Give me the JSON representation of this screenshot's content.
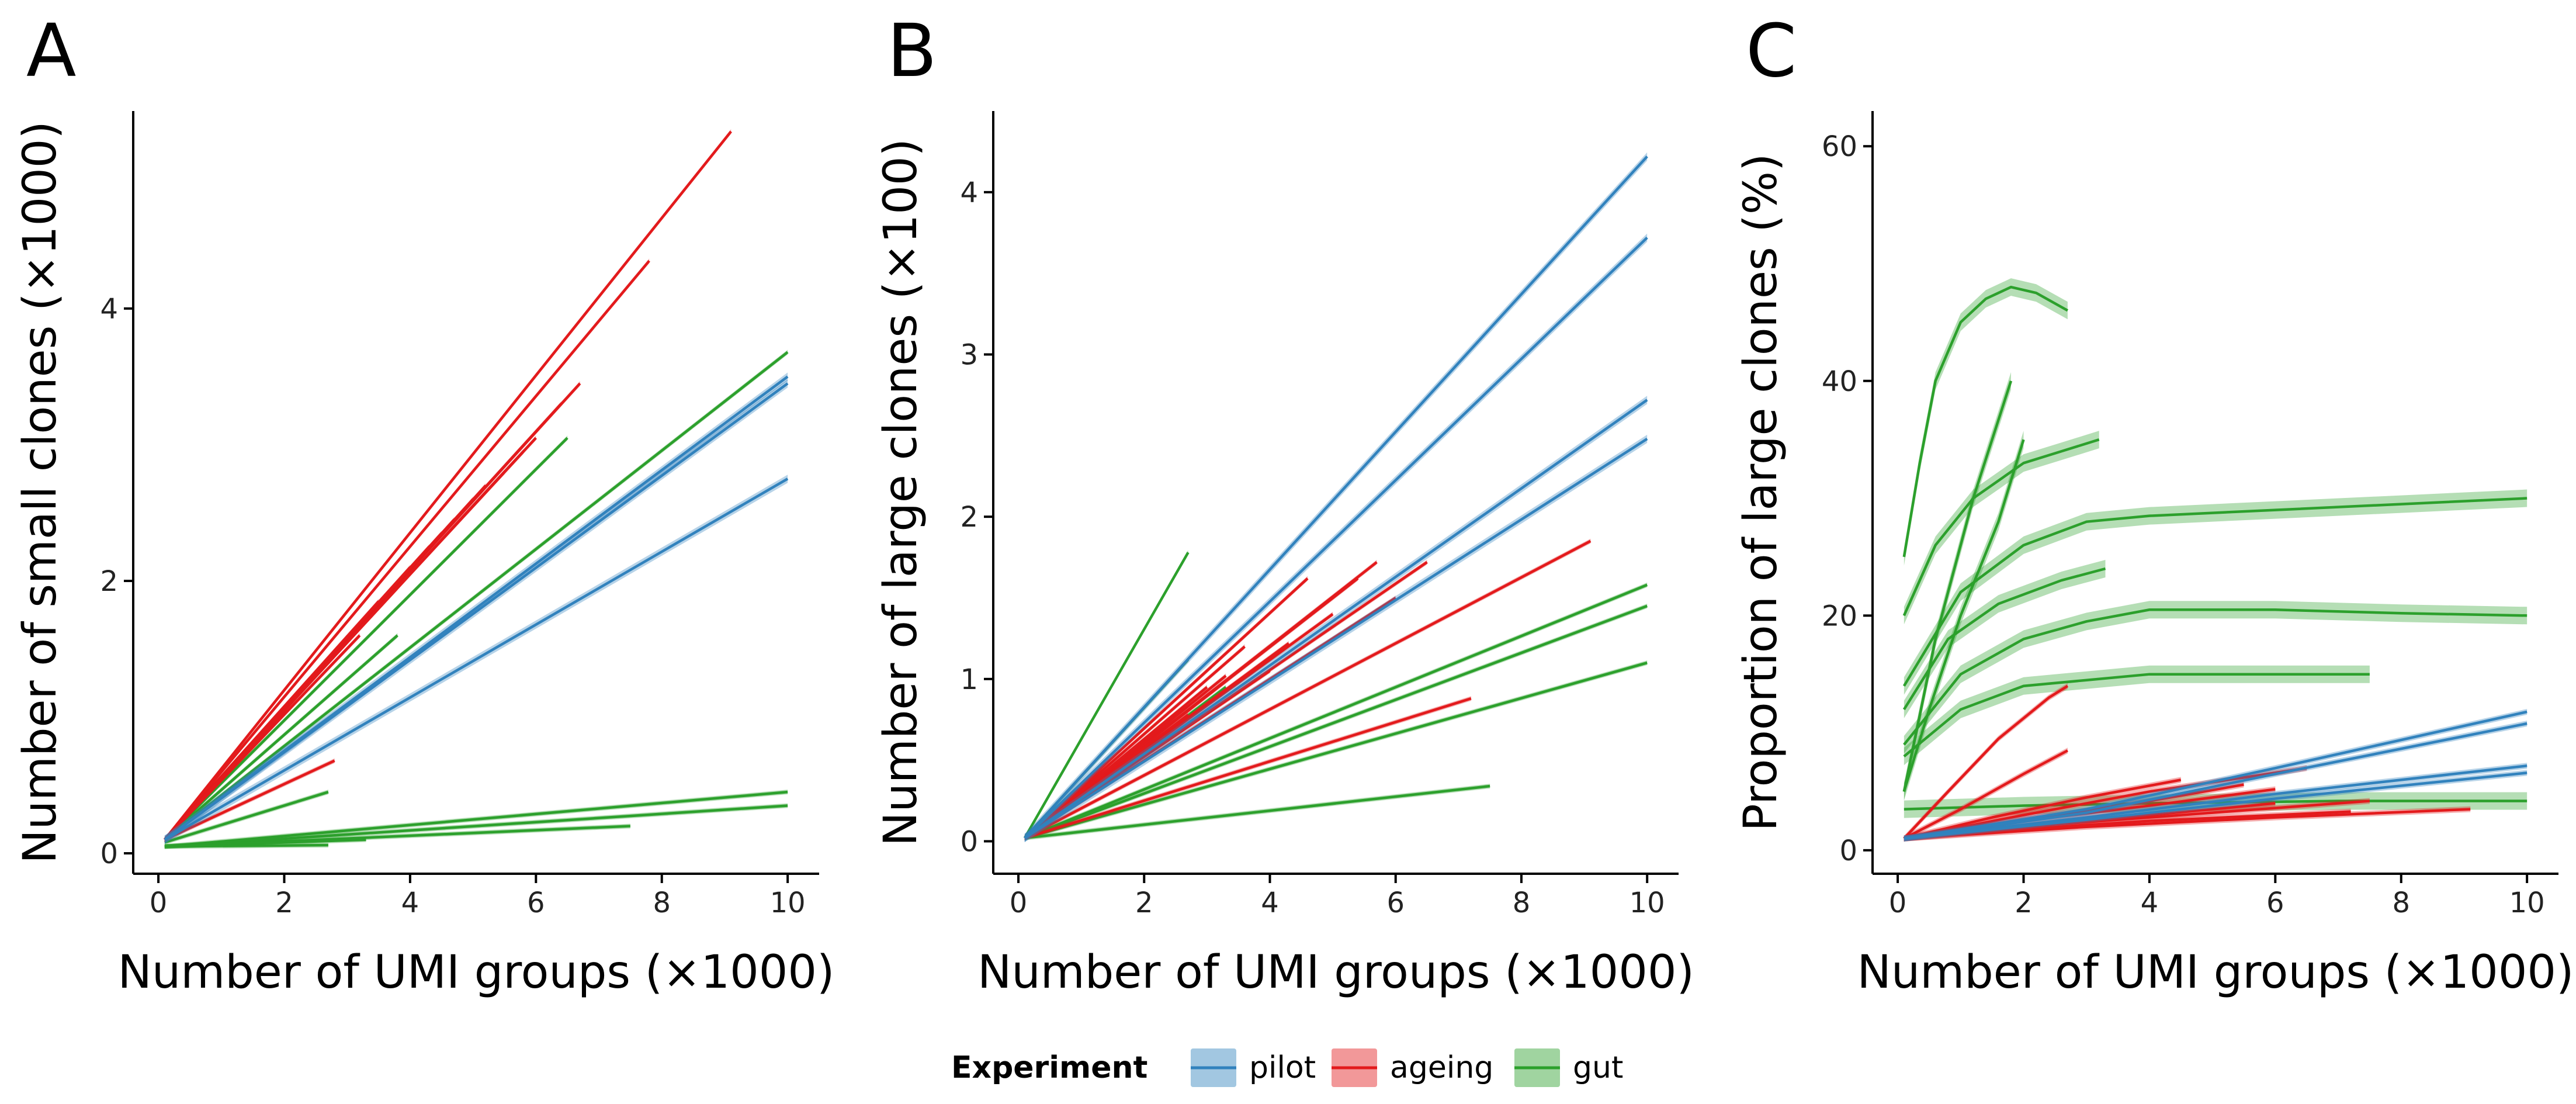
{
  "legend": {
    "title": "Experiment",
    "items": [
      {
        "label": "pilot",
        "color": "#3182bd"
      },
      {
        "label": "ageing",
        "color": "#e31a1c"
      },
      {
        "label": "gut",
        "color": "#2ca02c"
      }
    ],
    "placement": "bottom-center"
  },
  "chart_data": [
    {
      "panel": "A",
      "type": "line",
      "xlabel": "Number of UMI groups (×1000)",
      "ylabel": "Number of small clones (×1000)",
      "xlim": [
        -0.4,
        10.5
      ],
      "ylim": [
        -0.15,
        5.45
      ],
      "xticks": [
        0,
        2,
        4,
        6,
        8,
        10
      ],
      "yticks": [
        0,
        2,
        4
      ],
      "grid": false,
      "series": [
        {
          "group": "ageing",
          "x": [
            0.1,
            9.1
          ],
          "y": [
            0.1,
            5.3
          ]
        },
        {
          "group": "ageing",
          "x": [
            0.1,
            7.8
          ],
          "y": [
            0.1,
            4.35
          ]
        },
        {
          "group": "ageing",
          "x": [
            0.1,
            6.7
          ],
          "y": [
            0.1,
            3.45
          ]
        },
        {
          "group": "ageing",
          "x": [
            0.1,
            6.4
          ],
          "y": [
            0.1,
            3.3
          ]
        },
        {
          "group": "ageing",
          "x": [
            0.1,
            6.0
          ],
          "y": [
            0.1,
            3.05
          ]
        },
        {
          "group": "ageing",
          "x": [
            0.1,
            5.8
          ],
          "y": [
            0.1,
            2.95
          ]
        },
        {
          "group": "ageing",
          "x": [
            0.1,
            5.5
          ],
          "y": [
            0.1,
            2.8
          ]
        },
        {
          "group": "ageing",
          "x": [
            0.1,
            5.2
          ],
          "y": [
            0.1,
            2.7
          ]
        },
        {
          "group": "ageing",
          "x": [
            0.1,
            5.0
          ],
          "y": [
            0.1,
            2.6
          ]
        },
        {
          "group": "ageing",
          "x": [
            0.1,
            4.7
          ],
          "y": [
            0.1,
            2.45
          ]
        },
        {
          "group": "ageing",
          "x": [
            0.1,
            4.5
          ],
          "y": [
            0.1,
            2.35
          ]
        },
        {
          "group": "ageing",
          "x": [
            0.1,
            4.3
          ],
          "y": [
            0.1,
            2.25
          ]
        },
        {
          "group": "ageing",
          "x": [
            0.1,
            4.0
          ],
          "y": [
            0.1,
            2.1
          ]
        },
        {
          "group": "ageing",
          "x": [
            0.1,
            3.8
          ],
          "y": [
            0.1,
            1.95
          ]
        },
        {
          "group": "ageing",
          "x": [
            0.1,
            3.5
          ],
          "y": [
            0.1,
            1.85
          ]
        },
        {
          "group": "ageing",
          "x": [
            0.1,
            3.2
          ],
          "y": [
            0.1,
            1.6
          ]
        },
        {
          "group": "ageing",
          "x": [
            0.1,
            2.8
          ],
          "y": [
            0.1,
            1.45
          ]
        },
        {
          "group": "ageing",
          "x": [
            0.1,
            2.5
          ],
          "y": [
            0.1,
            1.3
          ]
        },
        {
          "group": "ageing",
          "x": [
            0.1,
            2.2
          ],
          "y": [
            0.1,
            1.15
          ]
        },
        {
          "group": "ageing",
          "x": [
            0.1,
            2.0
          ],
          "y": [
            0.1,
            1.05
          ]
        },
        {
          "group": "ageing",
          "x": [
            0.1,
            2.8
          ],
          "y": [
            0.1,
            0.68
          ]
        },
        {
          "group": "pilot",
          "x": [
            0.1,
            10
          ],
          "y": [
            0.1,
            3.45
          ]
        },
        {
          "group": "pilot",
          "x": [
            0.1,
            10
          ],
          "y": [
            0.1,
            3.5
          ]
        },
        {
          "group": "pilot",
          "x": [
            0.1,
            10
          ],
          "y": [
            0.1,
            2.75
          ]
        },
        {
          "group": "gut",
          "x": [
            0.1,
            10
          ],
          "y": [
            0.1,
            3.68
          ]
        },
        {
          "group": "gut",
          "x": [
            0.1,
            6.5
          ],
          "y": [
            0.1,
            3.05
          ]
        },
        {
          "group": "gut",
          "x": [
            0.1,
            3.8
          ],
          "y": [
            0.1,
            1.6
          ]
        },
        {
          "group": "gut",
          "x": [
            0.1,
            10
          ],
          "y": [
            0.05,
            0.45
          ]
        },
        {
          "group": "gut",
          "x": [
            0.1,
            10
          ],
          "y": [
            0.05,
            0.35
          ]
        },
        {
          "group": "gut",
          "x": [
            0.1,
            7.5
          ],
          "y": [
            0.05,
            0.2
          ]
        },
        {
          "group": "gut",
          "x": [
            0.1,
            3.3
          ],
          "y": [
            0.05,
            0.1
          ]
        },
        {
          "group": "gut",
          "x": [
            0.1,
            2.7
          ],
          "y": [
            0.05,
            0.06
          ]
        },
        {
          "group": "gut",
          "x": [
            0.1,
            2.7
          ],
          "y": [
            0.08,
            0.45
          ]
        }
      ]
    },
    {
      "panel": "B",
      "type": "line",
      "xlabel": "Number of UMI groups (×1000)",
      "ylabel": "Number of large clones (×100)",
      "xlim": [
        -0.4,
        10.5
      ],
      "ylim": [
        -0.2,
        4.5
      ],
      "xticks": [
        0,
        2,
        4,
        6,
        8,
        10
      ],
      "yticks": [
        0,
        1,
        2,
        3,
        4
      ],
      "grid": false,
      "series": [
        {
          "group": "pilot",
          "x": [
            0.1,
            10
          ],
          "y": [
            0.02,
            4.22
          ]
        },
        {
          "group": "pilot",
          "x": [
            0.1,
            10
          ],
          "y": [
            0.02,
            3.72
          ]
        },
        {
          "group": "pilot",
          "x": [
            0.1,
            10
          ],
          "y": [
            0.02,
            2.72
          ]
        },
        {
          "group": "pilot",
          "x": [
            0.1,
            10
          ],
          "y": [
            0.02,
            2.48
          ]
        },
        {
          "group": "ageing",
          "x": [
            0.1,
            9.1
          ],
          "y": [
            0.02,
            1.85
          ]
        },
        {
          "group": "ageing",
          "x": [
            0.1,
            7.2
          ],
          "y": [
            0.02,
            0.88
          ]
        },
        {
          "group": "ageing",
          "x": [
            0.1,
            6.5
          ],
          "y": [
            0.02,
            1.72
          ]
        },
        {
          "group": "ageing",
          "x": [
            0.1,
            6.0
          ],
          "y": [
            0.02,
            1.5
          ]
        },
        {
          "group": "ageing",
          "x": [
            0.1,
            5.7
          ],
          "y": [
            0.02,
            1.72
          ]
        },
        {
          "group": "ageing",
          "x": [
            0.1,
            5.4
          ],
          "y": [
            0.02,
            1.62
          ]
        },
        {
          "group": "ageing",
          "x": [
            0.1,
            5.0
          ],
          "y": [
            0.02,
            1.4
          ]
        },
        {
          "group": "ageing",
          "x": [
            0.1,
            4.6
          ],
          "y": [
            0.02,
            1.62
          ]
        },
        {
          "group": "ageing",
          "x": [
            0.1,
            4.3
          ],
          "y": [
            0.02,
            1.22
          ]
        },
        {
          "group": "ageing",
          "x": [
            0.1,
            4.0
          ],
          "y": [
            0.02,
            1.05
          ]
        },
        {
          "group": "ageing",
          "x": [
            0.1,
            3.6
          ],
          "y": [
            0.02,
            1.2
          ]
        },
        {
          "group": "ageing",
          "x": [
            0.1,
            3.3
          ],
          "y": [
            0.02,
            1.02
          ]
        },
        {
          "group": "ageing",
          "x": [
            0.1,
            3.0
          ],
          "y": [
            0.02,
            0.95
          ]
        },
        {
          "group": "ageing",
          "x": [
            0.1,
            2.7
          ],
          "y": [
            0.02,
            0.78
          ]
        },
        {
          "group": "gut",
          "x": [
            0.1,
            2.7
          ],
          "y": [
            0.02,
            1.78
          ]
        },
        {
          "group": "gut",
          "x": [
            0.1,
            2.7
          ],
          "y": [
            0.02,
            1.12
          ]
        },
        {
          "group": "gut",
          "x": [
            0.1,
            10
          ],
          "y": [
            0.02,
            1.58
          ]
        },
        {
          "group": "gut",
          "x": [
            0.1,
            10
          ],
          "y": [
            0.02,
            1.45
          ]
        },
        {
          "group": "gut",
          "x": [
            0.1,
            10
          ],
          "y": [
            0.02,
            1.1
          ]
        },
        {
          "group": "gut",
          "x": [
            0.1,
            7.5
          ],
          "y": [
            0.02,
            0.34
          ]
        },
        {
          "group": "gut",
          "x": [
            0.1,
            3.3
          ],
          "y": [
            0.02,
            0.95
          ]
        }
      ]
    },
    {
      "panel": "C",
      "type": "line",
      "xlabel": "Number of UMI groups (×1000)",
      "ylabel": "Proportion of large clones (%)",
      "xlim": [
        -0.4,
        10.5
      ],
      "ylim": [
        -2,
        63
      ],
      "xticks": [
        0,
        2,
        4,
        6,
        8,
        10
      ],
      "yticks": [
        0,
        20,
        40,
        60
      ],
      "grid": false,
      "series": [
        {
          "group": "gut",
          "x": [
            0.1,
            0.35,
            0.6,
            1.0,
            1.4,
            1.8,
            2.2,
            2.7
          ],
          "y": [
            25,
            33,
            40,
            45,
            47,
            48,
            47.5,
            46
          ]
        },
        {
          "group": "gut",
          "x": [
            0.1,
            0.6,
            1.2,
            2.0,
            2.6,
            3.2
          ],
          "y": [
            20,
            26,
            30,
            33,
            34,
            35
          ]
        },
        {
          "group": "gut",
          "x": [
            0.1,
            1.0,
            2.0,
            3.0,
            4.0,
            6.0,
            8.0,
            10.0
          ],
          "y": [
            14,
            22,
            26,
            28,
            28.5,
            29,
            29.5,
            30
          ]
        },
        {
          "group": "gut",
          "x": [
            0.1,
            1.0,
            2.0,
            3.0,
            4.0,
            6.0,
            8.0,
            10.0
          ],
          "y": [
            9,
            15,
            18,
            19.5,
            20.5,
            20.5,
            20.2,
            20
          ]
        },
        {
          "group": "gut",
          "x": [
            0.1,
            1.0,
            2.0,
            3.0,
            4.0,
            5.5,
            7.5
          ],
          "y": [
            8,
            12,
            14,
            14.5,
            15,
            15,
            15
          ]
        },
        {
          "group": "gut",
          "x": [
            0.1,
            0.8,
            1.6,
            2.6,
            3.3
          ],
          "y": [
            12,
            18,
            21,
            23,
            24
          ]
        },
        {
          "group": "gut",
          "x": [
            0.1,
            0.5,
            1.0,
            1.6,
            2.0
          ],
          "y": [
            5,
            12,
            20,
            28,
            35
          ]
        },
        {
          "group": "gut",
          "x": [
            0.1,
            0.6,
            1.2,
            1.8
          ],
          "y": [
            5,
            18,
            30,
            40
          ]
        },
        {
          "group": "gut",
          "x": [
            0.1,
            2.0,
            4.0,
            7.0,
            10.0
          ],
          "y": [
            3.5,
            3.8,
            4.0,
            4.2,
            4.2
          ]
        },
        {
          "group": "pilot",
          "x": [
            0.1,
            3.0,
            6.0,
            10.0
          ],
          "y": [
            1,
            3.5,
            7,
            11.8
          ]
        },
        {
          "group": "pilot",
          "x": [
            0.1,
            3.0,
            6.0,
            10.0
          ],
          "y": [
            1,
            3.2,
            6.5,
            10.8
          ]
        },
        {
          "group": "pilot",
          "x": [
            0.1,
            3.0,
            6.0,
            10.0
          ],
          "y": [
            1,
            2.8,
            4.8,
            7.2
          ]
        },
        {
          "group": "pilot",
          "x": [
            0.1,
            3.0,
            6.0,
            10.0
          ],
          "y": [
            1,
            2.6,
            4.4,
            6.6
          ]
        },
        {
          "group": "ageing",
          "x": [
            0.1,
            0.8,
            1.6,
            2.4,
            2.7
          ],
          "y": [
            1,
            5,
            9.5,
            13,
            14
          ]
        },
        {
          "group": "ageing",
          "x": [
            0.1,
            1.0,
            2.0,
            2.7
          ],
          "y": [
            1,
            3.5,
            6.5,
            8.5
          ]
        },
        {
          "group": "ageing",
          "x": [
            0.1,
            2.0,
            4.0,
            6.5
          ],
          "y": [
            1,
            3.0,
            5.0,
            7.0
          ]
        },
        {
          "group": "ageing",
          "x": [
            0.1,
            2.0,
            4.0,
            6.0
          ],
          "y": [
            1,
            2.5,
            3.8,
            5.2
          ]
        },
        {
          "group": "ageing",
          "x": [
            0.1,
            2.5,
            5.0,
            7.5
          ],
          "y": [
            1,
            2.2,
            3.2,
            4.2
          ]
        },
        {
          "group": "ageing",
          "x": [
            0.1,
            3.0,
            6.0,
            9.1
          ],
          "y": [
            1,
            2.0,
            2.8,
            3.5
          ]
        },
        {
          "group": "ageing",
          "x": [
            0.1,
            2.0,
            4.0,
            5.5
          ],
          "y": [
            1,
            2.6,
            4.2,
            5.6
          ]
        },
        {
          "group": "ageing",
          "x": [
            0.1,
            1.5,
            3.0,
            4.5
          ],
          "y": [
            1,
            2.8,
            4.5,
            6.0
          ]
        },
        {
          "group": "ageing",
          "x": [
            0.1,
            2.0,
            4.0,
            6.0
          ],
          "y": [
            1,
            2.0,
            3.0,
            4.0
          ]
        },
        {
          "group": "ageing",
          "x": [
            0.1,
            2.0,
            4.0,
            7.2
          ],
          "y": [
            1,
            1.8,
            2.5,
            3.3
          ]
        }
      ]
    }
  ],
  "panels": [
    {
      "letter": "A"
    },
    {
      "letter": "B"
    },
    {
      "letter": "C"
    }
  ]
}
